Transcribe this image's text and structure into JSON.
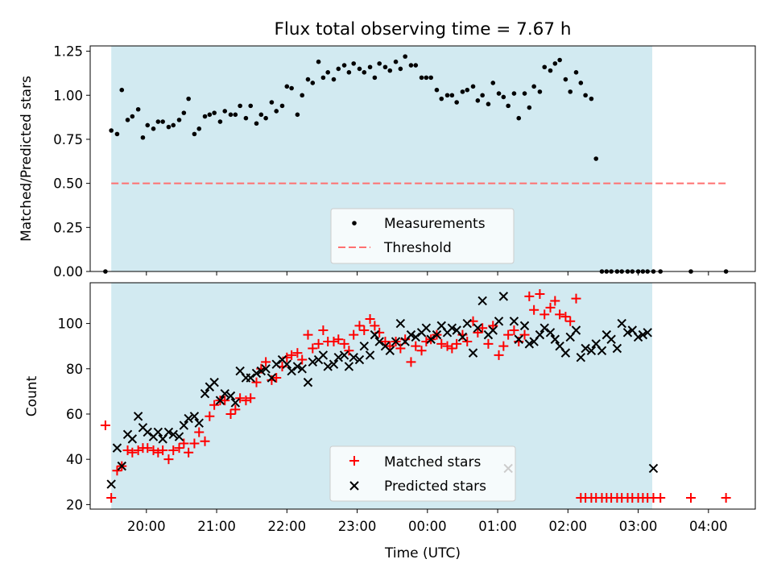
{
  "figure": {
    "title": "Flux total observing time = 7.67 h"
  },
  "colors": {
    "band": "#ADD8E6",
    "threshold": "#ff7070",
    "matched": "#ff0000",
    "predicted": "#000000",
    "measurement": "#000000"
  },
  "chart_data": [
    {
      "type": "scatter",
      "ylabel": "Matched/Predicted stars",
      "ylim": [
        0,
        1.28
      ],
      "xlim": [
        "19:12",
        "04:40"
      ],
      "yticks": [
        "0.00",
        "0.25",
        "0.50",
        "0.75",
        "1.00",
        "1.25"
      ],
      "grid": false,
      "legend_position": "bottom-center",
      "observing_window": [
        "19:30",
        "03:12"
      ],
      "threshold": {
        "name": "Threshold",
        "value": 0.5,
        "x": [
          "19:30",
          "04:15"
        ]
      },
      "series": [
        {
          "name": "Measurements",
          "marker": "dot",
          "x": [
            "19:25",
            "19:30",
            "19:35",
            "19:39",
            "19:44",
            "19:48",
            "19:53",
            "19:57",
            "20:01",
            "20:06",
            "20:10",
            "20:14",
            "20:19",
            "20:23",
            "20:28",
            "20:32",
            "20:36",
            "20:41",
            "20:45",
            "20:50",
            "20:54",
            "20:58",
            "21:03",
            "21:07",
            "21:12",
            "21:16",
            "21:20",
            "21:25",
            "21:29",
            "21:34",
            "21:38",
            "21:42",
            "21:47",
            "21:51",
            "21:56",
            "22:00",
            "22:04",
            "22:09",
            "22:13",
            "22:18",
            "22:22",
            "22:27",
            "22:31",
            "22:35",
            "22:40",
            "22:44",
            "22:49",
            "22:53",
            "22:57",
            "23:02",
            "23:06",
            "23:11",
            "23:15",
            "23:19",
            "23:24",
            "23:28",
            "23:33",
            "23:37",
            "23:41",
            "23:46",
            "23:50",
            "23:55",
            "23:59",
            "00:03",
            "00:08",
            "00:12",
            "00:17",
            "00:21",
            "00:25",
            "00:30",
            "00:34",
            "00:39",
            "00:43",
            "00:47",
            "00:52",
            "00:56",
            "01:01",
            "01:05",
            "01:09",
            "01:14",
            "01:18",
            "01:23",
            "01:27",
            "01:31",
            "01:36",
            "01:40",
            "01:45",
            "01:49",
            "01:53",
            "01:58",
            "02:02",
            "02:07",
            "02:11",
            "02:15",
            "02:20",
            "02:24",
            "02:29",
            "02:33",
            "02:37",
            "02:42",
            "02:46",
            "02:51",
            "02:55",
            "03:00",
            "03:04",
            "03:08",
            "03:13",
            "03:19",
            "03:45",
            "04:15"
          ],
          "y": [
            0.0,
            0.8,
            0.78,
            1.03,
            0.86,
            0.88,
            0.92,
            0.76,
            0.83,
            0.81,
            0.85,
            0.85,
            0.82,
            0.83,
            0.86,
            0.9,
            0.98,
            0.78,
            0.81,
            0.88,
            0.89,
            0.9,
            0.85,
            0.91,
            0.89,
            0.89,
            0.94,
            0.87,
            0.94,
            0.84,
            0.89,
            0.87,
            0.96,
            0.91,
            0.94,
            1.05,
            1.04,
            0.89,
            1.0,
            1.09,
            1.07,
            1.19,
            1.1,
            1.13,
            1.09,
            1.15,
            1.17,
            1.13,
            1.18,
            1.15,
            1.13,
            1.16,
            1.1,
            1.18,
            1.16,
            1.14,
            1.19,
            1.15,
            1.22,
            1.17,
            1.17,
            1.1,
            1.1,
            1.1,
            1.03,
            0.98,
            1.0,
            1.0,
            0.96,
            1.02,
            1.03,
            1.05,
            0.97,
            1.0,
            0.95,
            1.07,
            1.01,
            0.99,
            0.94,
            1.01,
            0.87,
            1.01,
            0.93,
            1.05,
            1.02,
            1.16,
            1.14,
            1.18,
            1.2,
            1.09,
            1.02,
            1.13,
            1.07,
            1.0,
            0.98,
            0.64,
            0.0,
            0.0,
            0.0,
            0.0,
            0.0,
            0.0,
            0.0,
            0.0,
            0.0,
            0.0,
            0.0,
            0.0,
            0.0,
            0.0
          ]
        }
      ]
    },
    {
      "type": "scatter",
      "xlabel": "Time (UTC)",
      "ylabel": "Count",
      "ylim": [
        18,
        118
      ],
      "xlim": [
        "19:12",
        "04:40"
      ],
      "xticks": [
        "20:00",
        "21:00",
        "22:00",
        "23:00",
        "00:00",
        "01:00",
        "02:00",
        "03:00",
        "04:00"
      ],
      "yticks": [
        "20",
        "40",
        "60",
        "80",
        "100"
      ],
      "grid": false,
      "legend_position": "bottom-center",
      "observing_window": [
        "19:30",
        "03:12"
      ],
      "series": [
        {
          "name": "Matched stars",
          "marker": "plus",
          "x": [
            "19:25",
            "19:30",
            "19:35",
            "19:39",
            "19:44",
            "19:48",
            "19:53",
            "19:57",
            "20:01",
            "20:06",
            "20:10",
            "20:14",
            "20:19",
            "20:23",
            "20:28",
            "20:32",
            "20:36",
            "20:41",
            "20:45",
            "20:50",
            "20:54",
            "20:58",
            "21:03",
            "21:07",
            "21:12",
            "21:16",
            "21:20",
            "21:25",
            "21:29",
            "21:34",
            "21:38",
            "21:42",
            "21:47",
            "21:51",
            "21:56",
            "22:00",
            "22:04",
            "22:09",
            "22:13",
            "22:18",
            "22:22",
            "22:27",
            "22:31",
            "22:35",
            "22:40",
            "22:44",
            "22:49",
            "22:53",
            "22:57",
            "23:02",
            "23:06",
            "23:11",
            "23:15",
            "23:19",
            "23:24",
            "23:28",
            "23:33",
            "23:37",
            "23:41",
            "23:46",
            "23:50",
            "23:55",
            "23:59",
            "00:03",
            "00:08",
            "00:12",
            "00:17",
            "00:21",
            "00:25",
            "00:30",
            "00:34",
            "00:39",
            "00:43",
            "00:47",
            "00:52",
            "00:56",
            "01:01",
            "01:05",
            "01:09",
            "01:14",
            "01:18",
            "01:23",
            "01:27",
            "01:31",
            "01:36",
            "01:40",
            "01:45",
            "01:49",
            "01:53",
            "01:58",
            "02:02",
            "02:07",
            "02:11",
            "02:15",
            "02:20",
            "02:24",
            "02:29",
            "02:33",
            "02:37",
            "02:42",
            "02:46",
            "02:51",
            "02:55",
            "03:00",
            "03:04",
            "03:08",
            "03:13",
            "03:19",
            "03:45",
            "04:15"
          ],
          "y": [
            55,
            23,
            35,
            37,
            44,
            43,
            44,
            45,
            45,
            44,
            43,
            44,
            40,
            44,
            45,
            47,
            43,
            47,
            52,
            48,
            59,
            64,
            66,
            66,
            60,
            62,
            67,
            66,
            67,
            74,
            80,
            83,
            75,
            76,
            81,
            85,
            86,
            87,
            84,
            95,
            89,
            91,
            97,
            92,
            92,
            93,
            91,
            88,
            95,
            99,
            97,
            102,
            99,
            96,
            92,
            90,
            92,
            89,
            93,
            83,
            90,
            88,
            92,
            93,
            95,
            91,
            90,
            89,
            91,
            95,
            92,
            101,
            96,
            98,
            91,
            99,
            86,
            90,
            95,
            97,
            92,
            95,
            112,
            106,
            113,
            104,
            107,
            110,
            104,
            103,
            101,
            111,
            23,
            23,
            23,
            23,
            23,
            23,
            23,
            23,
            23,
            23,
            23,
            23,
            23,
            23,
            23,
            23,
            23,
            23
          ]
        },
        {
          "name": "Predicted stars",
          "marker": "x",
          "x": [
            "19:30",
            "19:35",
            "19:39",
            "19:44",
            "19:48",
            "19:53",
            "19:57",
            "20:01",
            "20:06",
            "20:10",
            "20:14",
            "20:19",
            "20:23",
            "20:28",
            "20:32",
            "20:36",
            "20:41",
            "20:45",
            "20:50",
            "20:54",
            "20:58",
            "21:03",
            "21:07",
            "21:12",
            "21:16",
            "21:20",
            "21:25",
            "21:29",
            "21:34",
            "21:38",
            "21:42",
            "21:47",
            "21:51",
            "21:56",
            "22:00",
            "22:04",
            "22:09",
            "22:13",
            "22:18",
            "22:22",
            "22:27",
            "22:31",
            "22:35",
            "22:40",
            "22:44",
            "22:49",
            "22:53",
            "22:57",
            "23:02",
            "23:06",
            "23:11",
            "23:15",
            "23:19",
            "23:24",
            "23:28",
            "23:33",
            "23:37",
            "23:41",
            "23:46",
            "23:50",
            "23:55",
            "23:59",
            "00:03",
            "00:08",
            "00:12",
            "00:17",
            "00:21",
            "00:25",
            "00:30",
            "00:34",
            "00:39",
            "00:43",
            "00:47",
            "00:52",
            "00:56",
            "01:01",
            "01:05",
            "01:09",
            "01:14",
            "01:18",
            "01:23",
            "01:27",
            "01:31",
            "01:36",
            "01:40",
            "01:45",
            "01:49",
            "01:53",
            "01:58",
            "02:02",
            "02:07",
            "02:11",
            "02:15",
            "02:20",
            "02:24",
            "02:29",
            "02:33",
            "02:37",
            "02:42",
            "02:46",
            "02:51",
            "02:55",
            "03:00",
            "03:04",
            "03:08",
            "03:13"
          ],
          "y": [
            29,
            45,
            37,
            51,
            49,
            59,
            54,
            52,
            50,
            52,
            49,
            52,
            51,
            50,
            55,
            58,
            59,
            56,
            69,
            72,
            74,
            66,
            69,
            68,
            65,
            79,
            76,
            76,
            78,
            79,
            80,
            76,
            82,
            84,
            82,
            79,
            81,
            80,
            74,
            83,
            84,
            86,
            81,
            82,
            85,
            86,
            81,
            85,
            84,
            90,
            86,
            95,
            92,
            90,
            88,
            92,
            100,
            92,
            95,
            94,
            96,
            98,
            93,
            95,
            99,
            96,
            98,
            97,
            94,
            100,
            87,
            98,
            110,
            95,
            97,
            101,
            112,
            36,
            101,
            93,
            99,
            91,
            92,
            95,
            98,
            96,
            93,
            90,
            87,
            94,
            97,
            85,
            89,
            88,
            91,
            88,
            95,
            93,
            89,
            100,
            96,
            97,
            94,
            95,
            96,
            36
          ]
        }
      ]
    }
  ]
}
